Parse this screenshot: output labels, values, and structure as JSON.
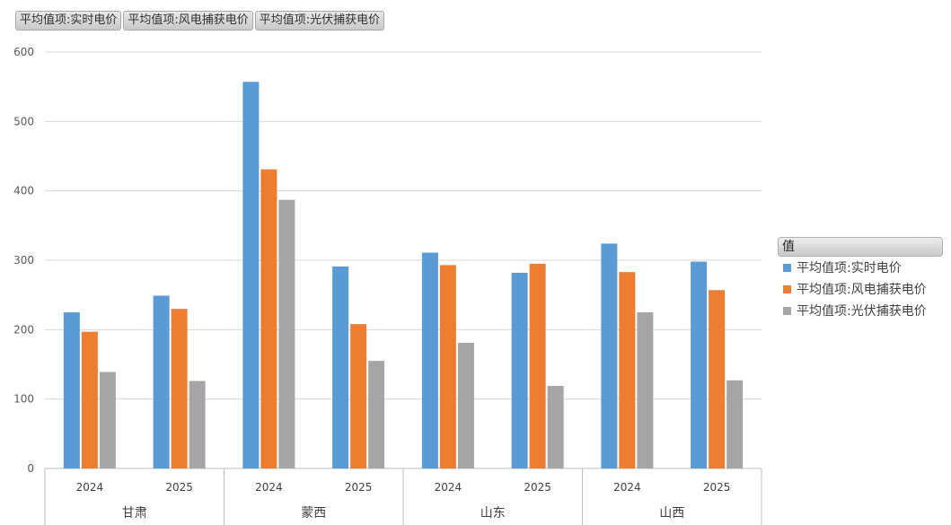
{
  "field_buttons": [
    "平均值项:实时电价",
    "平均值项:风电捕获电价",
    "平均值项:光伏捕获电价"
  ],
  "legend": {
    "title": "值",
    "items": [
      "平均值项:实时电价",
      "平均值项:风电捕获电价",
      "平均值项:光伏捕获电价"
    ]
  },
  "chart_data": {
    "type": "bar",
    "groups": [
      {
        "name": "甘肃",
        "years": [
          "2024",
          "2025"
        ]
      },
      {
        "name": "蒙西",
        "years": [
          "2024",
          "2025"
        ]
      },
      {
        "name": "山东",
        "years": [
          "2024",
          "2025"
        ]
      },
      {
        "name": "山西",
        "years": [
          "2024",
          "2025"
        ]
      }
    ],
    "categories": [
      "甘肃 2024",
      "甘肃 2025",
      "蒙西 2024",
      "蒙西 2025",
      "山东 2024",
      "山东 2025",
      "山西 2024",
      "山西 2025"
    ],
    "series": [
      {
        "name": "平均值项:实时电价",
        "color": "#5B9BD5",
        "values": [
          225,
          249,
          557,
          291,
          311,
          282,
          324,
          298
        ]
      },
      {
        "name": "平均值项:风电捕获电价",
        "color": "#ED7D31",
        "values": [
          197,
          230,
          431,
          208,
          293,
          295,
          283,
          257
        ]
      },
      {
        "name": "平均值项:光伏捕获电价",
        "color": "#A5A5A5",
        "values": [
          139,
          126,
          387,
          155,
          181,
          119,
          225,
          127
        ]
      }
    ],
    "ylim": [
      0,
      600
    ],
    "yticks": [
      0,
      100,
      200,
      300,
      400,
      500,
      600
    ],
    "grid": true,
    "legend_position": "right"
  }
}
